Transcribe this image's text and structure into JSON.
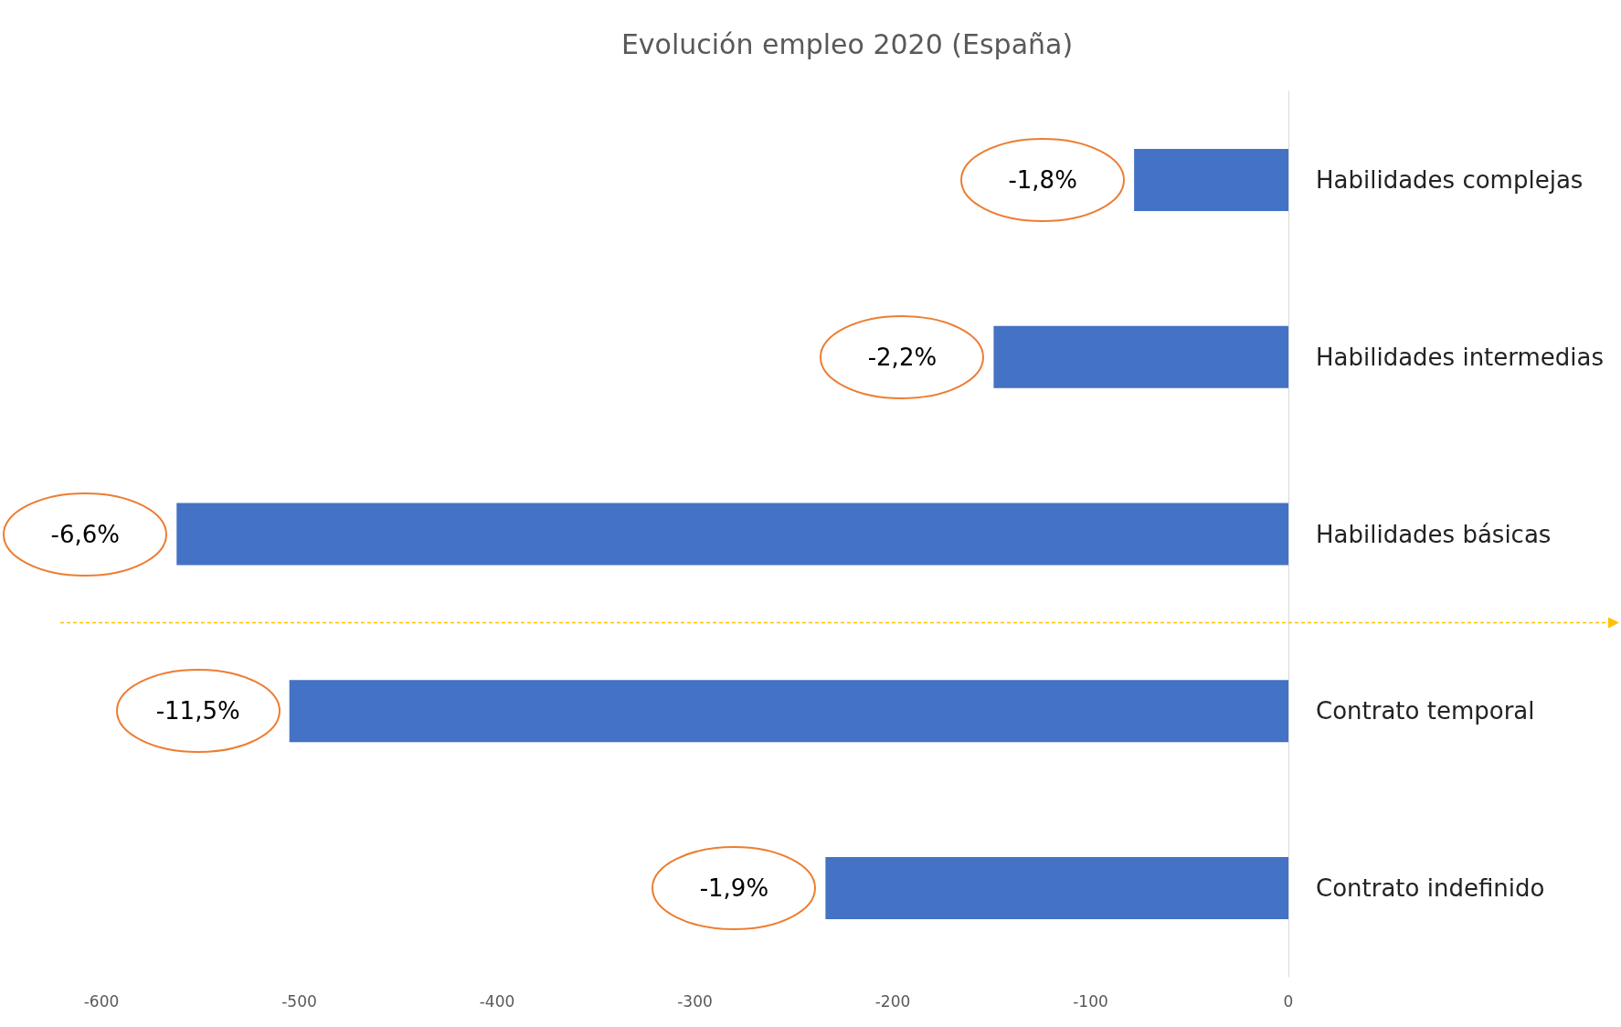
{
  "chart_data": {
    "type": "bar",
    "orientation": "horizontal",
    "title": "Evolución empleo 2020 (España)",
    "categories": [
      "Habilidades complejas",
      "Habilidades intermedias",
      "Habilidades básicas",
      "Contrato temporal",
      "Contrato indefinido"
    ],
    "values": [
      -78,
      -149,
      -562,
      -505,
      -234
    ],
    "color": "#4472c4",
    "xlim": [
      -600,
      0
    ],
    "xticks": [
      -600,
      -500,
      -400,
      -300,
      -200,
      -100,
      0
    ],
    "grid": false,
    "annotations": [
      {
        "text": "-1,8%",
        "x": -78,
        "y": "Habilidades complejas"
      },
      {
        "text": "-2,2%",
        "x": -149,
        "y": "Habilidades intermedias"
      },
      {
        "text": "-6,6%",
        "x": -562,
        "y": "Habilidades básicas"
      },
      {
        "text": "-11,5%",
        "x": -505,
        "y": "Contrato temporal"
      },
      {
        "text": "-1,9%",
        "x": -234,
        "y": "Contrato indefinido"
      }
    ]
  }
}
